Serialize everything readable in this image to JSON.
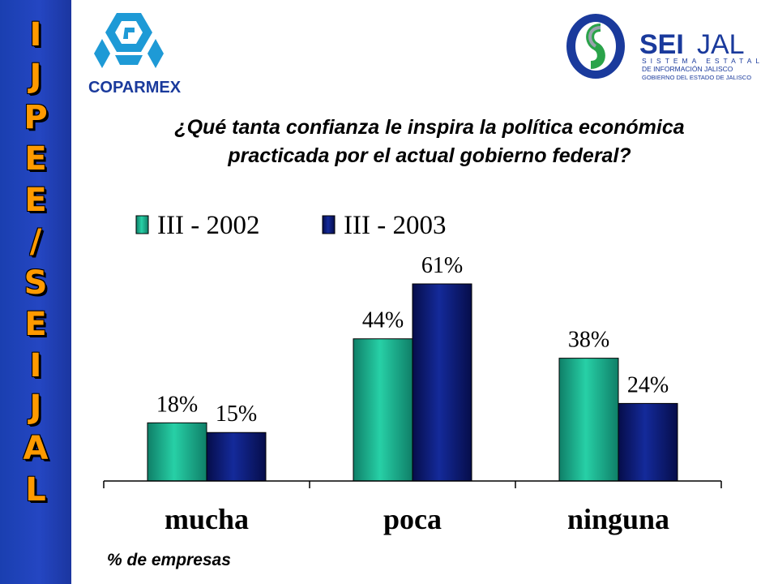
{
  "sidebar": {
    "letters": [
      "I",
      "J",
      "P",
      "E",
      "E",
      "/",
      "S",
      "E",
      "I",
      "J",
      "A",
      "L"
    ]
  },
  "logos": {
    "left": {
      "name": "COPARMEX",
      "color": "#1e9ad6",
      "text_color": "#1a3a9c"
    },
    "right": {
      "name_bold": "SEI",
      "name_rest": "JAL",
      "line1": "SISTEMA ESTATAL",
      "line2": "DE INFORMACIÓN JALISCO",
      "line3": "GOBIERNO DEL ESTADO DE JALISCO",
      "color": "#1a3a9c"
    }
  },
  "question": {
    "line1": "¿Qué tanta confianza le inspira la política económica",
    "line2": "practicada por el actual gobierno federal?"
  },
  "footnote": "% de empresas",
  "chart_data": {
    "type": "bar",
    "categories": [
      "mucha",
      "poca",
      "ninguna"
    ],
    "series": [
      {
        "name": "III - 2002",
        "values": [
          18,
          44,
          38
        ],
        "labels": [
          "18%",
          "44%",
          "38%"
        ],
        "color": "#1aa58a"
      },
      {
        "name": "III - 2003",
        "values": [
          15,
          61,
          24
        ],
        "labels": [
          "15%",
          "61%",
          "24%"
        ],
        "color": "#0b1577"
      }
    ],
    "ylim": [
      0,
      70
    ],
    "legend": "top",
    "grid": false
  }
}
